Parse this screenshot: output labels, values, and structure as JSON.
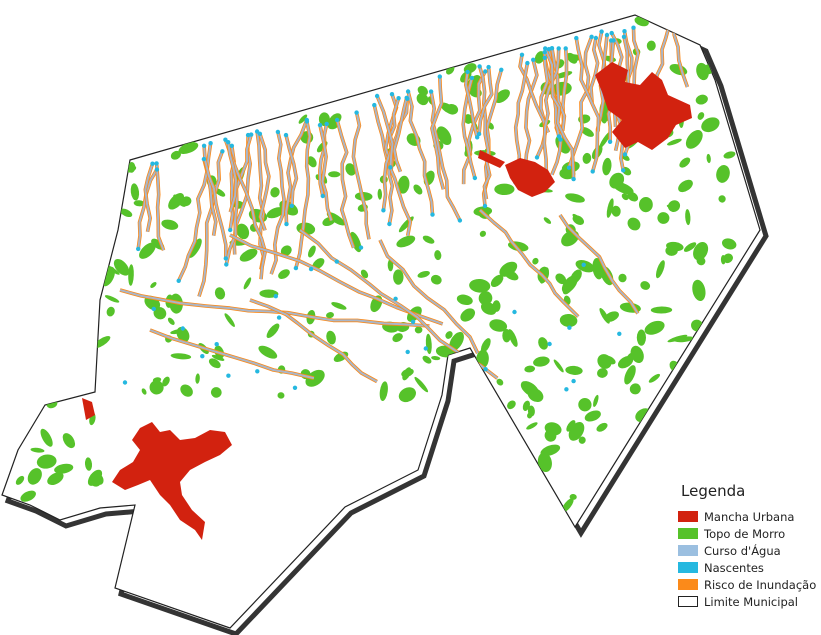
{
  "legend": {
    "title": "Legenda",
    "items": [
      {
        "label": "Mancha Urbana",
        "color": "#d2220f",
        "border": "#d2220f"
      },
      {
        "label": "Topo de Morro",
        "color": "#56c22a",
        "border": "#56c22a"
      },
      {
        "label": "Curso d'Água",
        "color": "#9bbfe0",
        "border": "#9bbfe0"
      },
      {
        "label": "Nascentes",
        "color": "#25b8e0",
        "border": "#25b8e0"
      },
      {
        "label": "Risco de Inundação",
        "color": "#fb8a1a",
        "border": "#fb8a1a"
      },
      {
        "label": "Limite Municipal",
        "color": "#ffffff",
        "border": "#222222"
      }
    ]
  },
  "colors": {
    "urban": "#d2220f",
    "hilltop": "#56c22a",
    "stream": "#a9b6c9",
    "spring": "#25b8e0",
    "flood": "#fb8a1a",
    "boundary": "#000000"
  }
}
